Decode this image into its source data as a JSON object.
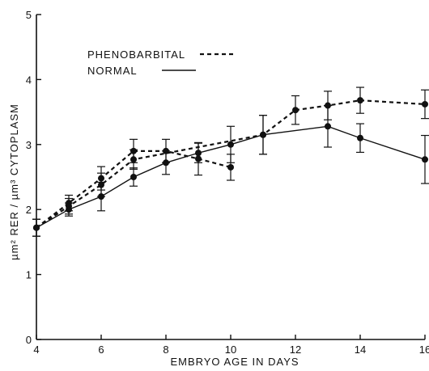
{
  "chart_data": {
    "type": "line",
    "xlabel": "EMBRYO AGE IN DAYS",
    "ylabel": "µm² RER / µm³ CYTOPLASM",
    "xlim": [
      4,
      16
    ],
    "ylim": [
      0,
      5
    ],
    "xticks": [
      "4",
      "6",
      "8",
      "10",
      "12",
      "14",
      "16"
    ],
    "yticks": [
      "0",
      "1",
      "2",
      "3",
      "4",
      "5"
    ],
    "grid": false,
    "legend_position": "top-left",
    "series": [
      {
        "name": "NORMAL",
        "style": "solid",
        "points": [
          {
            "x": 4,
            "y": 1.72,
            "err": 0.13
          },
          {
            "x": 5,
            "y": 2.0,
            "err": 0.1
          },
          {
            "x": 6,
            "y": 2.2,
            "err": 0.22
          },
          {
            "x": 7,
            "y": 2.5,
            "err": 0.14
          },
          {
            "x": 8,
            "y": 2.72,
            "err": 0.18
          },
          {
            "x": 9,
            "y": 2.87,
            "err": 0.15
          },
          {
            "x": 10,
            "y": 3.0,
            "err": 0.28
          },
          {
            "x": 11,
            "y": 3.15,
            "err": 0.3
          },
          {
            "x": 13,
            "y": 3.28,
            "err": 0.32
          },
          {
            "x": 14,
            "y": 3.1,
            "err": 0.22
          },
          {
            "x": 16,
            "y": 2.77,
            "err": 0.37
          }
        ]
      },
      {
        "name": "PHENOBARBITAL",
        "style": "dashed",
        "points": [
          {
            "x": 4,
            "y": 1.72,
            "err": 0.13
          },
          {
            "x": 5,
            "y": 2.1,
            "err": 0.12
          },
          {
            "x": 6,
            "y": 2.48,
            "err": 0.18
          },
          {
            "x": 7,
            "y": 2.9,
            "err": 0.18
          },
          {
            "x": 8,
            "y": 2.9,
            "err": 0.18
          },
          {
            "x": 9,
            "y": 2.78,
            "err": 0.25
          },
          {
            "x": 10,
            "y": 2.65,
            "err": 0.2
          }
        ]
      },
      {
        "name": "PHENOBARBITAL",
        "style": "dashed",
        "points": [
          {
            "x": 4,
            "y": 1.72,
            "err": 0.13
          },
          {
            "x": 5,
            "y": 2.05,
            "err": 0.12
          },
          {
            "x": 6,
            "y": 2.38,
            "err": 0.18
          },
          {
            "x": 7,
            "y": 2.77,
            "err": 0.15
          },
          {
            "x": 11,
            "y": 3.15,
            "err": 0.3
          },
          {
            "x": 12,
            "y": 3.53,
            "err": 0.22
          },
          {
            "x": 13,
            "y": 3.6,
            "err": 0.22
          },
          {
            "x": 14,
            "y": 3.68,
            "err": 0.2
          },
          {
            "x": 16,
            "y": 3.62,
            "err": 0.22
          }
        ]
      }
    ],
    "legend": [
      {
        "label": "PHENOBARBITAL",
        "style": "dashed"
      },
      {
        "label": "NORMAL",
        "style": "solid"
      }
    ]
  }
}
